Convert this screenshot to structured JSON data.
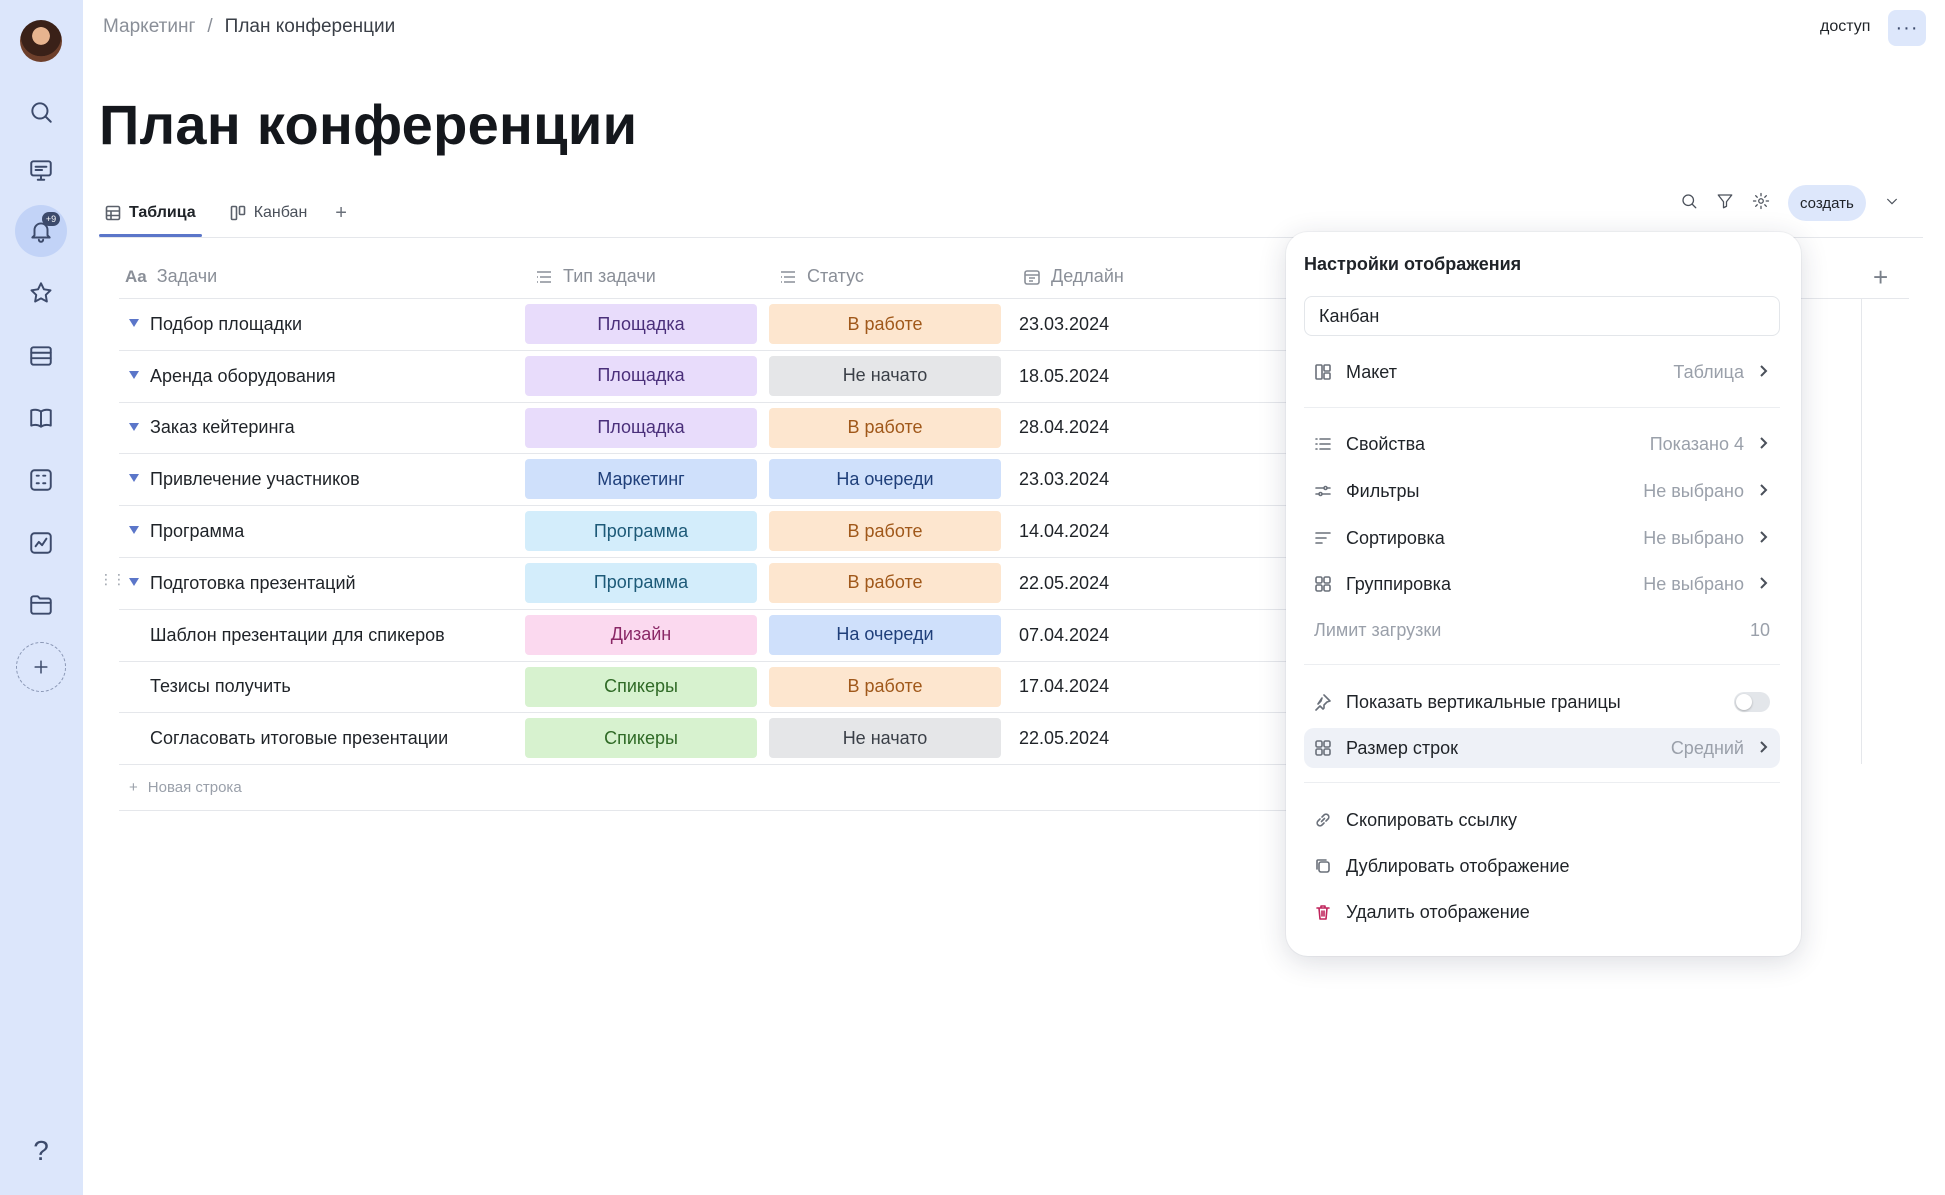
{
  "breadcrumb": {
    "parent": "Маркетинг",
    "separator": "/",
    "current": "План конференции"
  },
  "header": {
    "access_label": "доступ",
    "more_label": "···"
  },
  "page": {
    "title": "План конференции"
  },
  "rail": {
    "notification_badge": "+9",
    "help_label": "?"
  },
  "tabs": [
    {
      "label": "Таблица",
      "active": true
    },
    {
      "label": "Канбан",
      "active": false
    }
  ],
  "tabs_add": "+",
  "toolbar": {
    "create_label": "создать"
  },
  "table": {
    "columns": {
      "task": "Задачи",
      "type": "Тип задачи",
      "status": "Статус",
      "deadline": "Дедлайн",
      "add": "+"
    },
    "rows": [
      {
        "task": "Подбор площадки",
        "type": "Площадка",
        "status": "В работе",
        "date": "23.03.2024",
        "expandable": true
      },
      {
        "task": "Аренда оборудования",
        "type": "Площадка",
        "status": "Не начато",
        "date": "18.05.2024",
        "expandable": true
      },
      {
        "task": "Заказ кейтеринга",
        "type": "Площадка",
        "status": "В работе",
        "date": "28.04.2024",
        "expandable": true
      },
      {
        "task": "Привлечение участников",
        "type": "Маркетинг",
        "status": "На очереди",
        "date": "23.03.2024",
        "expandable": true
      },
      {
        "task": "Программа",
        "type": "Программа",
        "status": "В работе",
        "date": "14.04.2024",
        "expandable": true
      },
      {
        "task": "Подготовка презентаций",
        "type": "Программа",
        "status": "В работе",
        "date": "22.05.2024",
        "expandable": true
      },
      {
        "task": "Шаблон презентации для спикеров",
        "type": "Дизайн",
        "status": "На очереди",
        "date": "07.04.2024",
        "expandable": false
      },
      {
        "task": "Тезисы получить",
        "type": "Спикеры",
        "status": "В работе",
        "date": "17.04.2024",
        "expandable": false
      },
      {
        "task": "Согласовать итоговые презентации",
        "type": "Спикеры",
        "status": "Не начато",
        "date": "22.05.2024",
        "expandable": false
      }
    ],
    "new_row_label": "Новая строка"
  },
  "type_colors": {
    "Площадка": {
      "bg": "#e8dcfb",
      "fg": "#4a2f7a"
    },
    "Маркетинг": {
      "bg": "#cfe0fb",
      "fg": "#1f3f7a"
    },
    "Программа": {
      "bg": "#d3edfb",
      "fg": "#1d5a78"
    },
    "Дизайн": {
      "bg": "#fbd9ef",
      "fg": "#8a2766"
    },
    "Спикеры": {
      "bg": "#d7f2cf",
      "fg": "#2f6a26"
    }
  },
  "status_colors": {
    "В работе": {
      "bg": "#fde6cf",
      "fg": "#a0581a"
    },
    "Не начато": {
      "bg": "#e5e6e8",
      "fg": "#3a3f47"
    },
    "На очереди": {
      "bg": "#cfe0fb",
      "fg": "#1f3f7a"
    }
  },
  "popup": {
    "title": "Настройки отображения",
    "view_name": "Канбан",
    "layout": {
      "label": "Макет",
      "value": "Таблица"
    },
    "properties": {
      "label": "Свойства",
      "value": "Показано 4"
    },
    "filters": {
      "label": "Фильтры",
      "value": "Не выбрано"
    },
    "sorting": {
      "label": "Сортировка",
      "value": "Не выбрано"
    },
    "grouping": {
      "label": "Группировка",
      "value": "Не выбрано"
    },
    "load_limit": {
      "label": "Лимит загрузки",
      "value": "10"
    },
    "vertical_borders": {
      "label": "Показать вертикальные границы",
      "enabled": false
    },
    "row_size": {
      "label": "Размер строк",
      "value": "Средний"
    },
    "copy_link": "Скопировать ссылку",
    "duplicate": "Дублировать отображение",
    "delete": "Удалить отображение",
    "delete_color": "#c0245c"
  }
}
